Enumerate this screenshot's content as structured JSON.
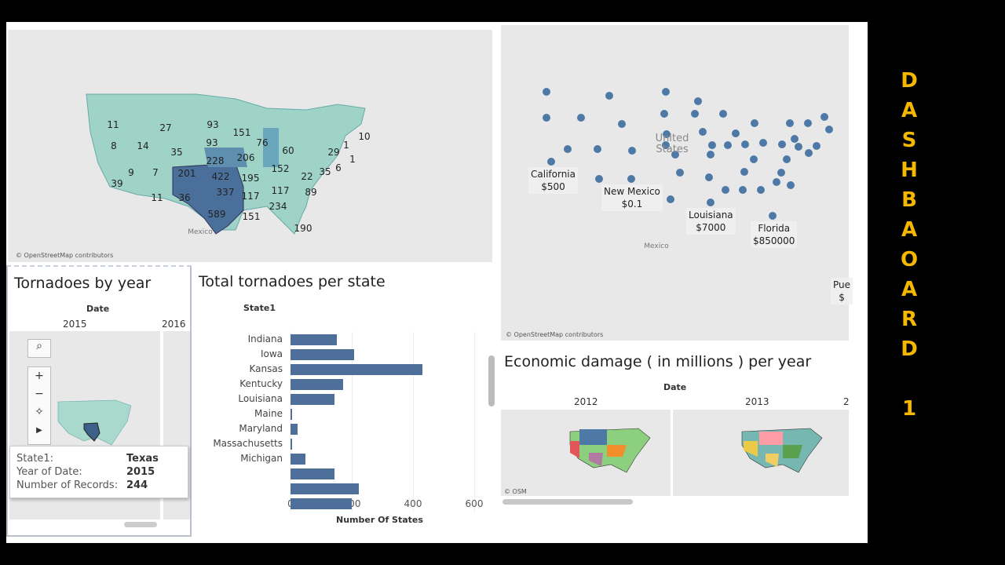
{
  "colors": {
    "accent": "#4e79a7",
    "bar": "#4e6f9a",
    "choropleth_low": "#b8e0d4",
    "choropleth_high": "#3f6a96",
    "side_text": "#f5b700"
  },
  "side_title": [
    "D",
    "A",
    "S",
    "H",
    "B",
    "A",
    "O",
    "A",
    "R",
    "D",
    "",
    "1"
  ],
  "tornado_map": {
    "attribution": "© OpenStreetMap contributors",
    "country_label": "Mexico",
    "state_values": [
      11,
      27,
      93,
      151,
      76,
      10,
      8,
      14,
      93,
      35,
      60,
      29,
      1,
      1,
      228,
      206,
      9,
      7,
      201,
      422,
      195,
      152,
      22,
      35,
      6,
      39,
      337,
      117,
      117,
      89,
      11,
      36,
      589,
      151,
      234,
      190
    ]
  },
  "damage_map": {
    "attribution": "© OpenStreetMap contributors",
    "country_label": "United States",
    "mexico_label": "Mexico",
    "labels": [
      {
        "state": "California",
        "value": "$500"
      },
      {
        "state": "New Mexico",
        "value": "$0.1"
      },
      {
        "state": "Louisiana",
        "value": "$7000"
      },
      {
        "state": "Florida",
        "value": "$850000"
      },
      {
        "state": "Pue",
        "value": "$"
      }
    ]
  },
  "by_year": {
    "title": "Tornadoes by year",
    "header": "Date",
    "years": [
      "2015",
      "2016"
    ],
    "controls": {
      "search": "search-icon",
      "zoom_in": "+",
      "zoom_out": "−",
      "pin": "pin-icon",
      "play": "▶"
    }
  },
  "tooltip": {
    "rows": [
      {
        "k": "State1:",
        "v": "Texas"
      },
      {
        "k": "Year of Date:",
        "v": "2015"
      },
      {
        "k": "Number of Records:",
        "v": "244"
      }
    ]
  },
  "chart_data": {
    "type": "bar",
    "title": "Total tornadoes per state",
    "ylabel": "State1",
    "xlabel": "Number Of States",
    "xlim": [
      0,
      650
    ],
    "xticks": [
      "0",
      "200",
      "400",
      "600"
    ],
    "grid": true,
    "categories": [
      "Indiana",
      "Iowa",
      "Kansas",
      "Kentucky",
      "Louisiana",
      "Maine",
      "Maryland",
      "Massachusetts",
      "Michigan",
      "",
      "",
      ""
    ],
    "values": [
      150,
      208,
      431,
      172,
      144,
      4,
      24,
      3,
      49,
      144,
      223,
      200
    ]
  },
  "economic": {
    "title": "Economic damage ( in millions ) per year",
    "header": "Date",
    "years": [
      "2012",
      "2013",
      "2"
    ],
    "attribution": "© OSM"
  }
}
